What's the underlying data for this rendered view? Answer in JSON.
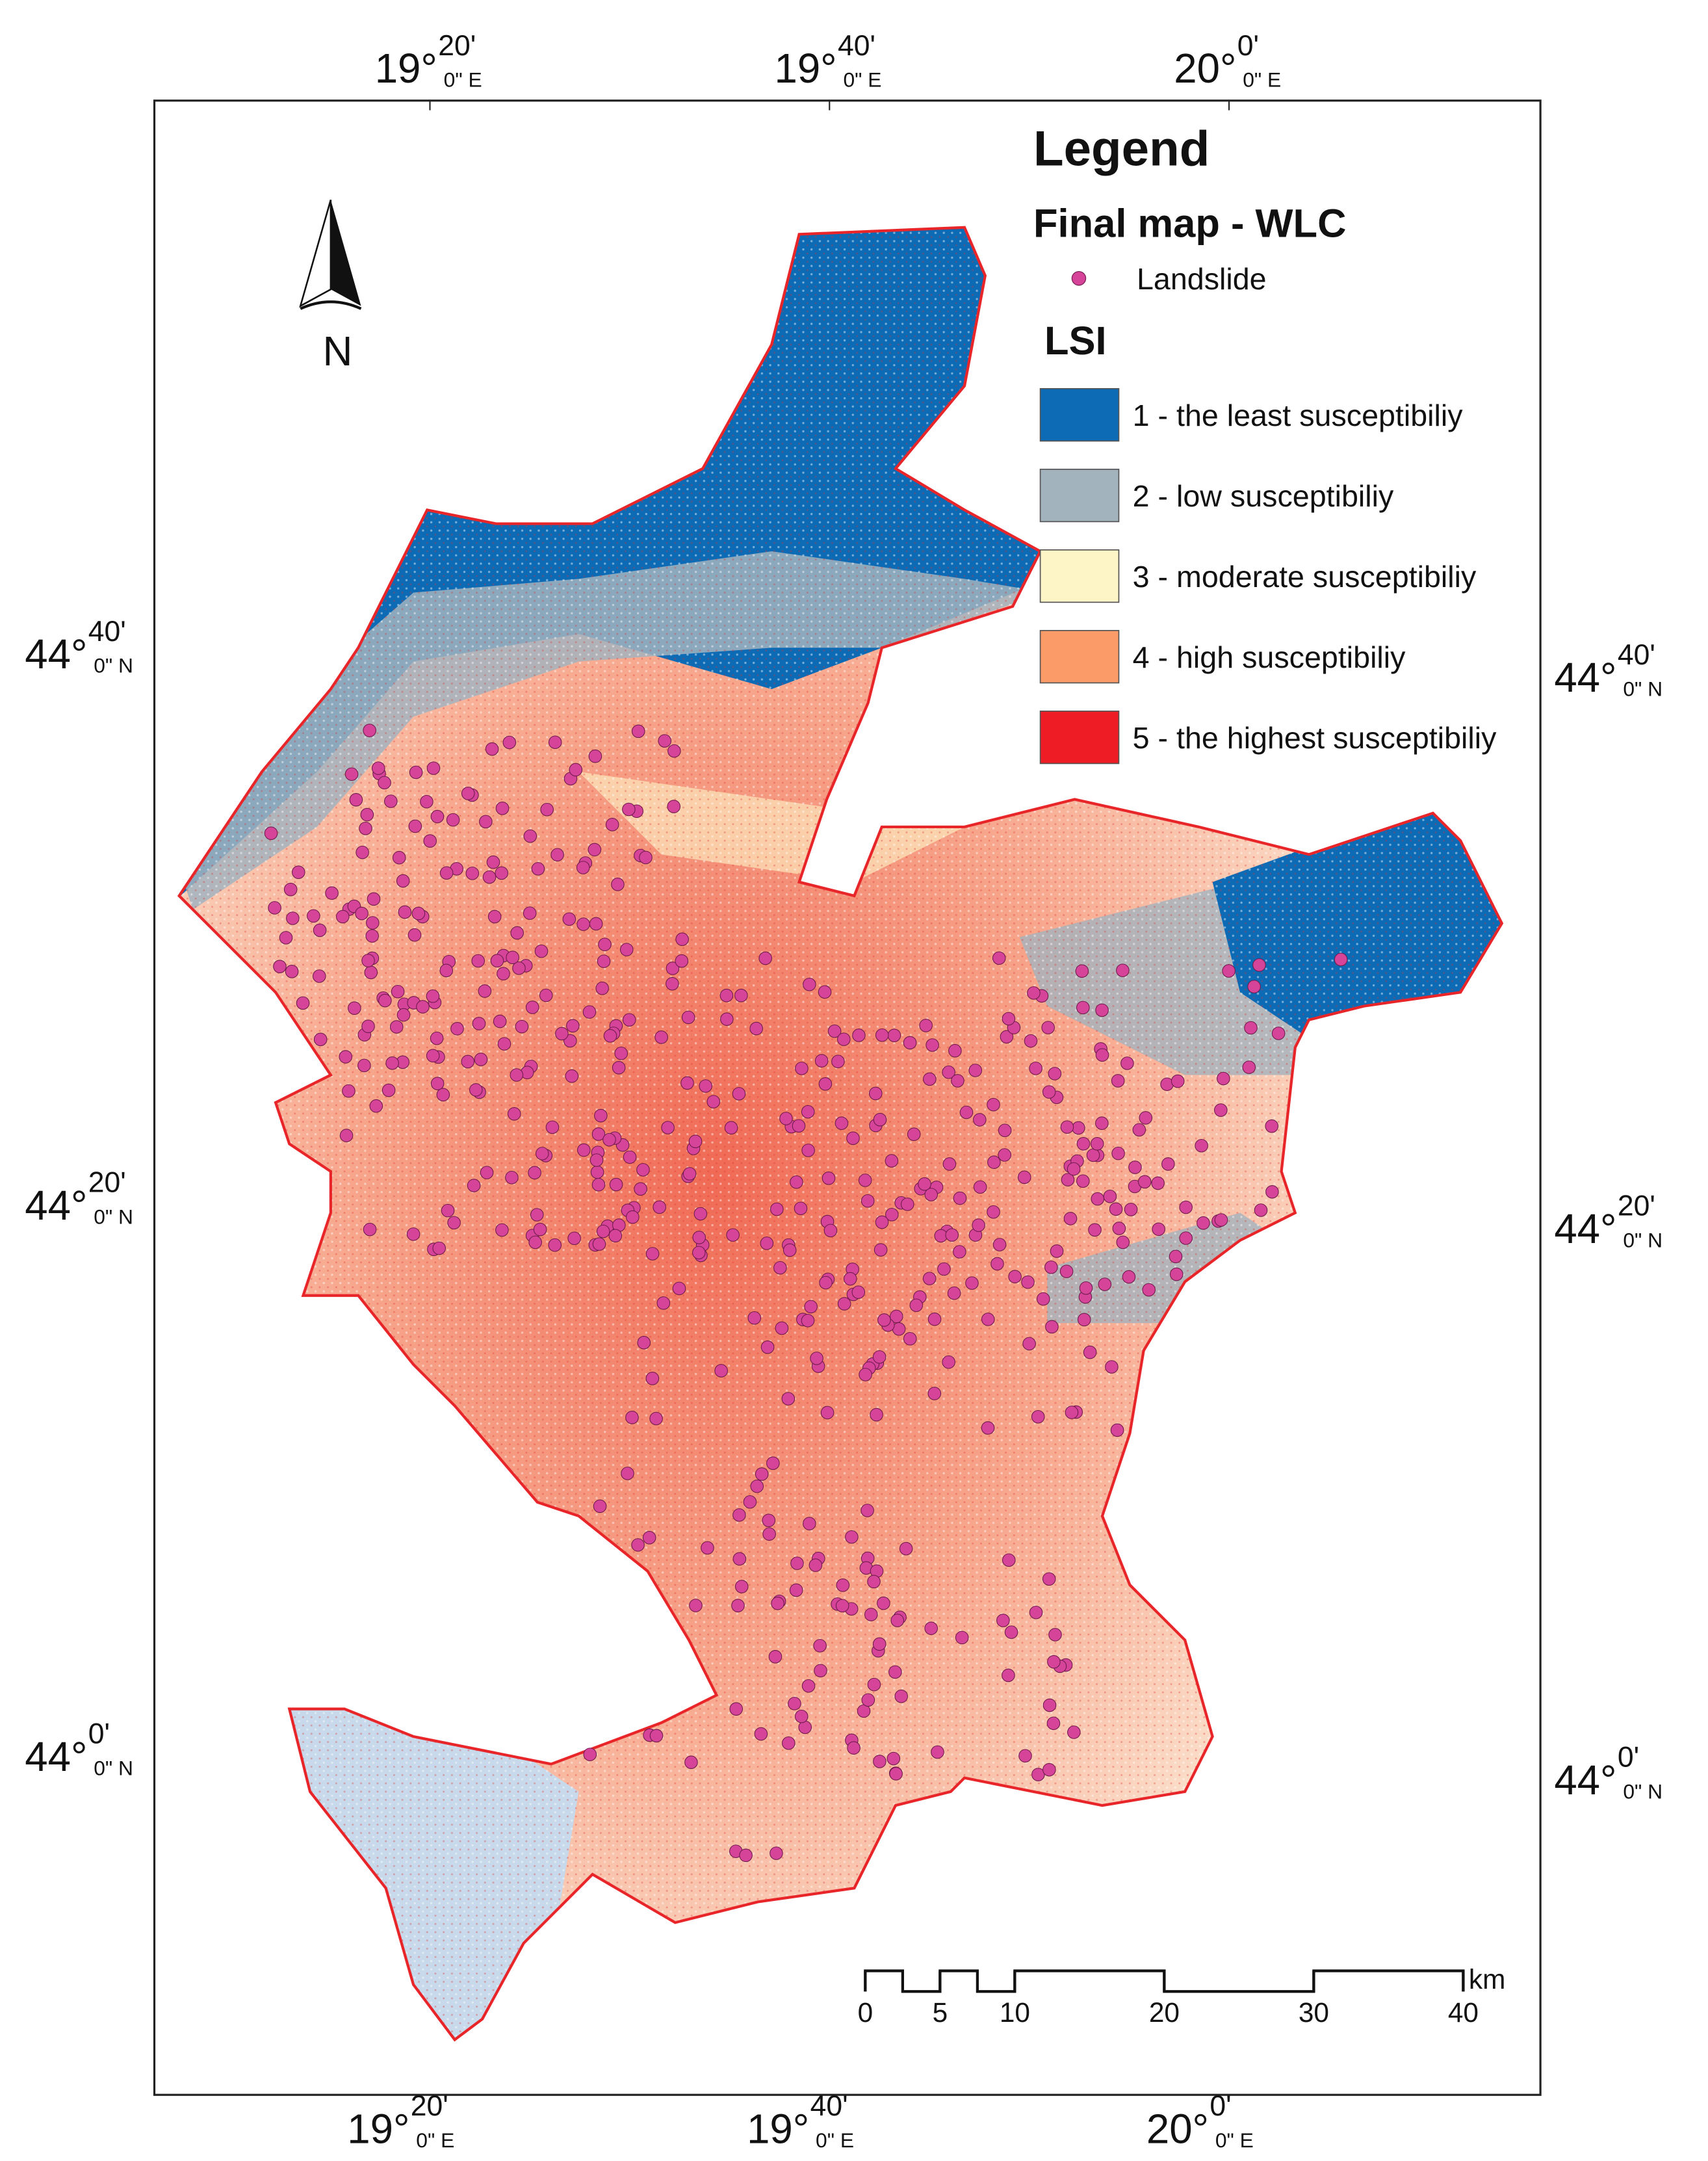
{
  "north_arrow": "N",
  "legend": {
    "title": "Legend",
    "subtitle": "Final map - WLC",
    "point_label": "Landslide",
    "point_color": "#d6449a",
    "class_heading": "LSI",
    "classes": [
      {
        "label": "1 - the least susceptibiliy",
        "color": "#0d6ab5"
      },
      {
        "label": "2 - low susceptibiliy",
        "color": "#a3b3be"
      },
      {
        "label": "3 - moderate susceptibiliy",
        "color": "#fdf5c6"
      },
      {
        "label": "4 - high susceptibiliy",
        "color": "#fb9b68"
      },
      {
        "label": "5 - the highest susceptibiliy",
        "color": "#ee1c25"
      }
    ]
  },
  "grid_labels": {
    "top": [
      {
        "degrees": "19°",
        "minutes": "20'",
        "seconds": "0\" E"
      },
      {
        "degrees": "19°",
        "minutes": "40'",
        "seconds": "0\" E"
      },
      {
        "degrees": "20°",
        "minutes": "0'",
        "seconds": "0\" E"
      }
    ],
    "bottom": [
      {
        "degrees": "19°",
        "minutes": "20'",
        "seconds": "0\" E"
      },
      {
        "degrees": "19°",
        "minutes": "40'",
        "seconds": "0\" E"
      },
      {
        "degrees": "20°",
        "minutes": "0'",
        "seconds": "0\" E"
      }
    ],
    "left": [
      {
        "degrees": "44°",
        "minutes": "40'",
        "seconds": "0\" N"
      },
      {
        "degrees": "44°",
        "minutes": "20'",
        "seconds": "0\" N"
      },
      {
        "degrees": "44°",
        "minutes": "0'",
        "seconds": "0\" N"
      }
    ],
    "right": [
      {
        "degrees": "44°",
        "minutes": "40'",
        "seconds": "0\" N"
      },
      {
        "degrees": "44°",
        "minutes": "20'",
        "seconds": "0\" N"
      },
      {
        "degrees": "44°",
        "minutes": "0'",
        "seconds": "0\" N"
      }
    ]
  },
  "scale_bar": {
    "ticks": [
      0,
      5,
      10,
      20,
      30,
      40
    ],
    "unit": "km"
  }
}
